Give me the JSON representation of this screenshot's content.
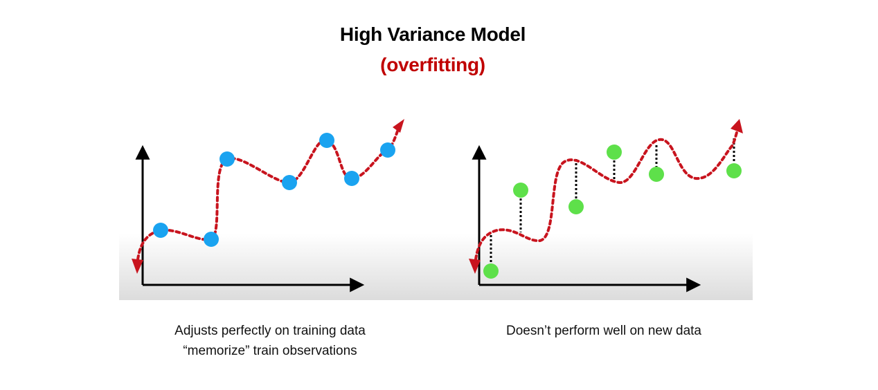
{
  "title": "High Variance Model",
  "subtitle": "(overfitting)",
  "colors": {
    "subtitle": "#c00000",
    "curve": "#c8141e",
    "axis": "#000000",
    "train_point": "#1aa3f0",
    "test_point": "#5ee04a",
    "residual": "#000000"
  },
  "panels": [
    {
      "caption_lines": [
        "Adjusts perfectly on training data",
        "“memorize” train observations"
      ]
    },
    {
      "caption_lines": [
        "Doesn’t perform well on new data"
      ]
    }
  ]
}
